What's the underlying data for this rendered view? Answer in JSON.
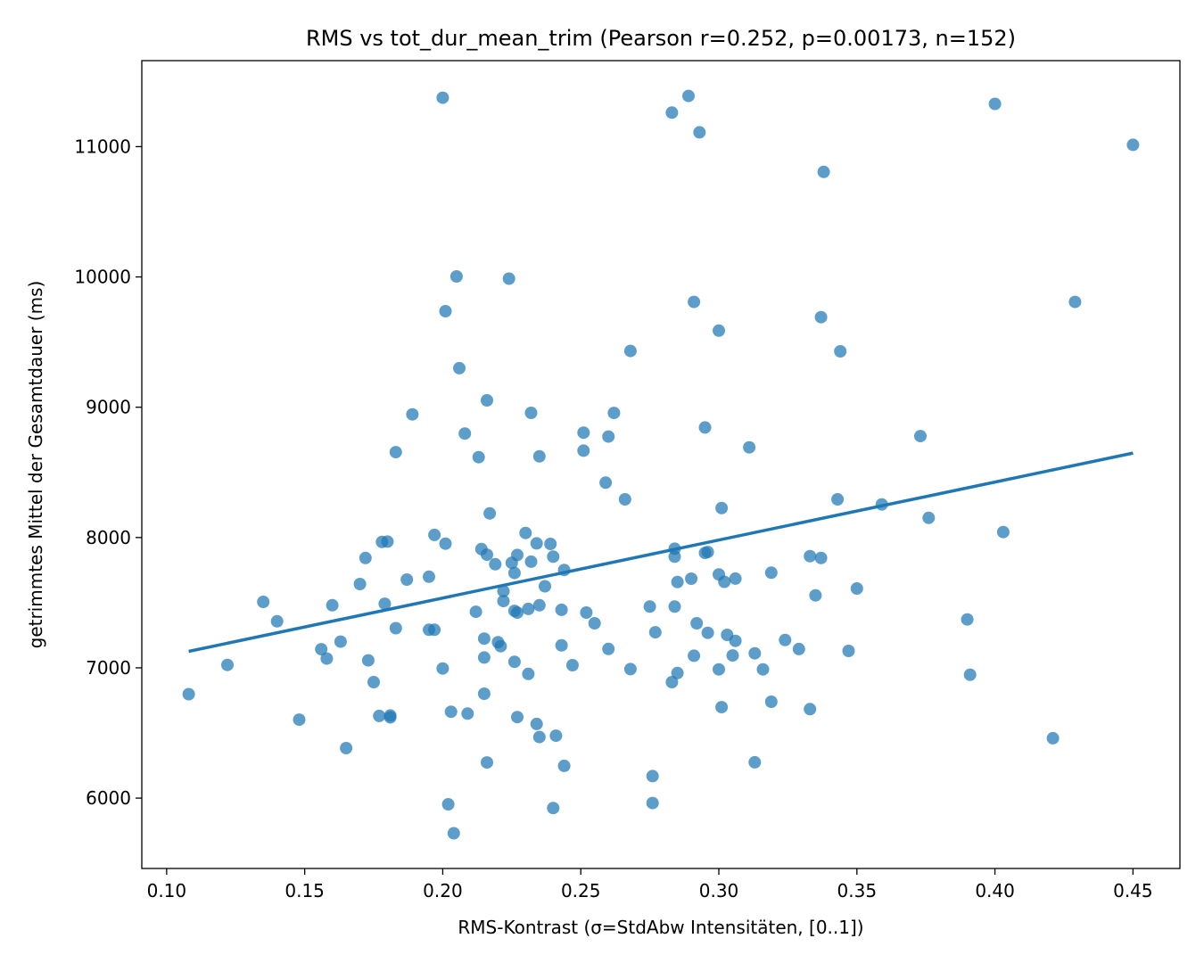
{
  "chart_data": {
    "type": "scatter",
    "title": "RMS vs tot_dur_mean_trim  (Pearson r=0.252, p=0.00173, n=152)",
    "xlabel": "RMS-Kontrast (σ=StdAbw Intensitäten, [0..1])",
    "ylabel": "getrimmtes Mittel der Gesamtdauer (ms)",
    "xlim": [
      0.091,
      0.467
    ],
    "ylim": [
      5460,
      11660
    ],
    "xticks": [
      0.1,
      0.15,
      0.2,
      0.25,
      0.3,
      0.35,
      0.4,
      0.45
    ],
    "xtick_labels": [
      "0.10",
      "0.15",
      "0.20",
      "0.25",
      "0.30",
      "0.35",
      "0.40",
      "0.45"
    ],
    "yticks": [
      6000,
      7000,
      8000,
      9000,
      10000,
      11000
    ],
    "ytick_labels": [
      "6000",
      "7000",
      "8000",
      "9000",
      "10000",
      "11000"
    ],
    "grid": false,
    "colors": {
      "points": "#1f77b4",
      "line": "#1f77b4"
    },
    "fit_line": {
      "x": [
        0.108,
        0.45
      ],
      "y": [
        7126,
        8648
      ]
    },
    "points": [
      [
        0.108,
        6798
      ],
      [
        0.122,
        7022
      ],
      [
        0.135,
        7506
      ],
      [
        0.14,
        7357
      ],
      [
        0.148,
        6602
      ],
      [
        0.156,
        7143
      ],
      [
        0.158,
        7071
      ],
      [
        0.16,
        7480
      ],
      [
        0.163,
        7201
      ],
      [
        0.165,
        6384
      ],
      [
        0.17,
        7643
      ],
      [
        0.172,
        7843
      ],
      [
        0.173,
        7057
      ],
      [
        0.175,
        6890
      ],
      [
        0.177,
        6631
      ],
      [
        0.178,
        7966
      ],
      [
        0.179,
        7492
      ],
      [
        0.18,
        7969
      ],
      [
        0.181,
        6634
      ],
      [
        0.181,
        6620
      ],
      [
        0.183,
        7304
      ],
      [
        0.183,
        8655
      ],
      [
        0.187,
        7677
      ],
      [
        0.189,
        8945
      ],
      [
        0.195,
        7699
      ],
      [
        0.195,
        7292
      ],
      [
        0.197,
        7292
      ],
      [
        0.197,
        8020
      ],
      [
        0.2,
        6995
      ],
      [
        0.2,
        11375
      ],
      [
        0.201,
        9737
      ],
      [
        0.201,
        7953
      ],
      [
        0.202,
        5953
      ],
      [
        0.203,
        6663
      ],
      [
        0.204,
        5730
      ],
      [
        0.205,
        10004
      ],
      [
        0.206,
        9300
      ],
      [
        0.208,
        8798
      ],
      [
        0.209,
        6649
      ],
      [
        0.212,
        7430
      ],
      [
        0.213,
        8617
      ],
      [
        0.214,
        7911
      ],
      [
        0.215,
        7079
      ],
      [
        0.215,
        6801
      ],
      [
        0.215,
        7224
      ],
      [
        0.216,
        9053
      ],
      [
        0.216,
        7868
      ],
      [
        0.216,
        6274
      ],
      [
        0.217,
        8185
      ],
      [
        0.219,
        7795
      ],
      [
        0.22,
        7196
      ],
      [
        0.221,
        7166
      ],
      [
        0.222,
        7589
      ],
      [
        0.222,
        7512
      ],
      [
        0.224,
        9987
      ],
      [
        0.225,
        7806
      ],
      [
        0.226,
        7046
      ],
      [
        0.226,
        7728
      ],
      [
        0.226,
        7437
      ],
      [
        0.227,
        7866
      ],
      [
        0.227,
        7423
      ],
      [
        0.227,
        6622
      ],
      [
        0.23,
        8035
      ],
      [
        0.231,
        6953
      ],
      [
        0.231,
        7452
      ],
      [
        0.232,
        8957
      ],
      [
        0.232,
        7815
      ],
      [
        0.234,
        7955
      ],
      [
        0.234,
        6569
      ],
      [
        0.235,
        7480
      ],
      [
        0.235,
        8623
      ],
      [
        0.235,
        6469
      ],
      [
        0.237,
        7626
      ],
      [
        0.239,
        7951
      ],
      [
        0.24,
        7853
      ],
      [
        0.24,
        5924
      ],
      [
        0.241,
        6479
      ],
      [
        0.243,
        7445
      ],
      [
        0.243,
        7172
      ],
      [
        0.244,
        7751
      ],
      [
        0.244,
        6248
      ],
      [
        0.247,
        7020
      ],
      [
        0.251,
        8805
      ],
      [
        0.251,
        8667
      ],
      [
        0.252,
        7424
      ],
      [
        0.255,
        7342
      ],
      [
        0.259,
        8421
      ],
      [
        0.26,
        8775
      ],
      [
        0.26,
        7145
      ],
      [
        0.262,
        8956
      ],
      [
        0.266,
        8293
      ],
      [
        0.268,
        9432
      ],
      [
        0.268,
        6990
      ],
      [
        0.275,
        7470
      ],
      [
        0.276,
        5962
      ],
      [
        0.276,
        6169
      ],
      [
        0.277,
        7273
      ],
      [
        0.283,
        11261
      ],
      [
        0.283,
        6890
      ],
      [
        0.284,
        7914
      ],
      [
        0.284,
        7853
      ],
      [
        0.284,
        7470
      ],
      [
        0.285,
        7659
      ],
      [
        0.285,
        6960
      ],
      [
        0.289,
        11389
      ],
      [
        0.29,
        7684
      ],
      [
        0.291,
        9808
      ],
      [
        0.291,
        7093
      ],
      [
        0.292,
        7342
      ],
      [
        0.293,
        11110
      ],
      [
        0.295,
        8845
      ],
      [
        0.295,
        7882
      ],
      [
        0.296,
        7889
      ],
      [
        0.296,
        7269
      ],
      [
        0.3,
        9588
      ],
      [
        0.3,
        7717
      ],
      [
        0.3,
        6988
      ],
      [
        0.301,
        8226
      ],
      [
        0.301,
        6698
      ],
      [
        0.302,
        7660
      ],
      [
        0.303,
        7253
      ],
      [
        0.305,
        7095
      ],
      [
        0.306,
        7207
      ],
      [
        0.306,
        7685
      ],
      [
        0.311,
        8692
      ],
      [
        0.313,
        7111
      ],
      [
        0.313,
        6275
      ],
      [
        0.316,
        6988
      ],
      [
        0.319,
        6740
      ],
      [
        0.319,
        7730
      ],
      [
        0.324,
        7213
      ],
      [
        0.329,
        7144
      ],
      [
        0.333,
        6683
      ],
      [
        0.333,
        7857
      ],
      [
        0.335,
        7556
      ],
      [
        0.337,
        9691
      ],
      [
        0.337,
        7843
      ],
      [
        0.338,
        10806
      ],
      [
        0.343,
        8293
      ],
      [
        0.344,
        9429
      ],
      [
        0.347,
        7130
      ],
      [
        0.35,
        7609
      ],
      [
        0.359,
        8254
      ],
      [
        0.373,
        8778
      ],
      [
        0.376,
        8151
      ],
      [
        0.39,
        7371
      ],
      [
        0.391,
        6947
      ],
      [
        0.4,
        11328
      ],
      [
        0.403,
        8042
      ],
      [
        0.421,
        6460
      ],
      [
        0.429,
        9808
      ],
      [
        0.45,
        11014
      ]
    ]
  }
}
